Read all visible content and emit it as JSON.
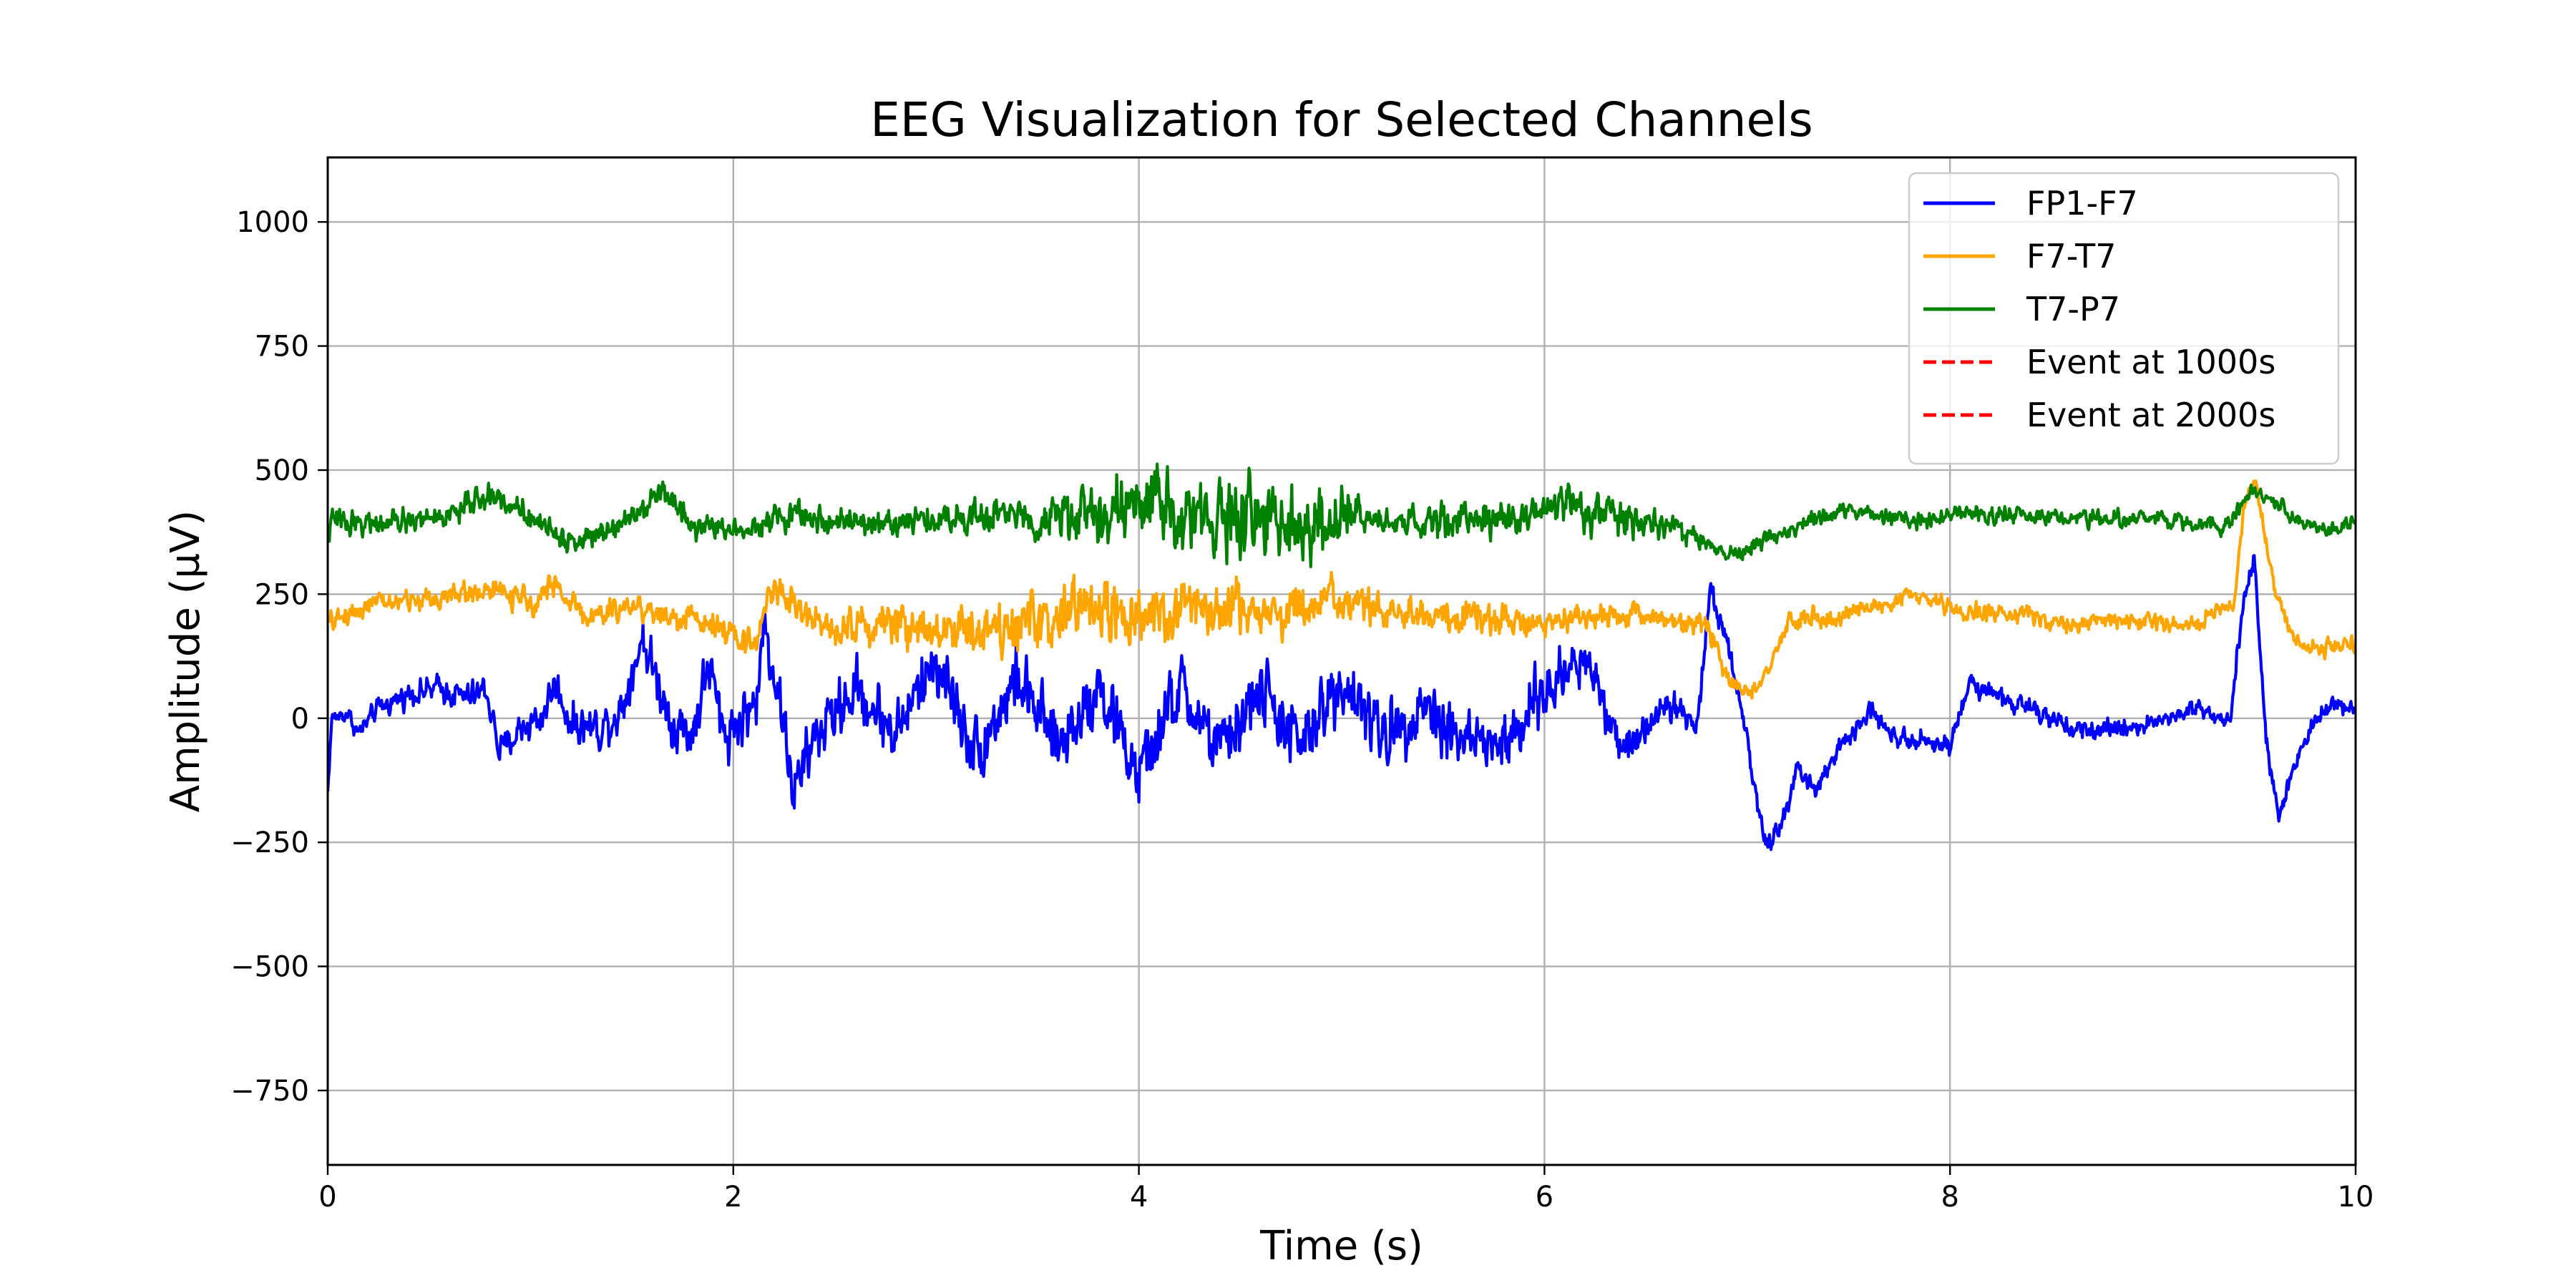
{
  "chart_data": {
    "type": "line",
    "title": "EEG Visualization for Selected Channels",
    "xlabel": "Time (s)",
    "ylabel": "Amplitude (µV)",
    "xlim": [
      0,
      10
    ],
    "ylim": [
      -900,
      1130
    ],
    "xticks": [
      0,
      2,
      4,
      6,
      8,
      10
    ],
    "xtick_labels": [
      "0",
      "2",
      "4",
      "6",
      "8",
      "10"
    ],
    "yticks": [
      -750,
      -500,
      -250,
      0,
      250,
      500,
      750,
      1000
    ],
    "ytick_labels": [
      "−750",
      "−500",
      "−250",
      "0",
      "250",
      "500",
      "750",
      "1000"
    ],
    "grid": true,
    "legend_position": "top-right",
    "series": [
      {
        "name": "FP1-F7",
        "color": "#0000ff",
        "anchors": [
          [
            0,
            -150
          ],
          [
            0.02,
            0
          ],
          [
            0.1,
            10
          ],
          [
            0.15,
            -30
          ],
          [
            0.25,
            20
          ],
          [
            0.4,
            50
          ],
          [
            0.55,
            60
          ],
          [
            0.7,
            40
          ],
          [
            0.78,
            60
          ],
          [
            0.85,
            -70
          ],
          [
            0.95,
            -20
          ],
          [
            1.05,
            0
          ],
          [
            1.12,
            70
          ],
          [
            1.2,
            -10
          ],
          [
            1.35,
            -20
          ],
          [
            1.45,
            20
          ],
          [
            1.55,
            165
          ],
          [
            1.62,
            80
          ],
          [
            1.7,
            -10
          ],
          [
            1.8,
            -30
          ],
          [
            1.88,
            110
          ],
          [
            1.95,
            -30
          ],
          [
            2.05,
            0
          ],
          [
            2.12,
            40
          ],
          [
            2.15,
            190
          ],
          [
            2.22,
            60
          ],
          [
            2.3,
            -150
          ],
          [
            2.4,
            -40
          ],
          [
            2.6,
            60
          ],
          [
            2.8,
            -30
          ],
          [
            3.0,
            120
          ],
          [
            3.2,
            -70
          ],
          [
            3.4,
            80
          ],
          [
            3.6,
            -60
          ],
          [
            3.8,
            70
          ],
          [
            4.0,
            -120
          ],
          [
            4.2,
            60
          ],
          [
            4.4,
            -70
          ],
          [
            4.6,
            60
          ],
          [
            4.8,
            -60
          ],
          [
            5.0,
            80
          ],
          [
            5.2,
            -40
          ],
          [
            5.4,
            30
          ],
          [
            5.6,
            -40
          ],
          [
            5.8,
            -60
          ],
          [
            6.0,
            50
          ],
          [
            6.2,
            130
          ],
          [
            6.4,
            -70
          ],
          [
            6.6,
            40
          ],
          [
            6.75,
            -20
          ],
          [
            6.82,
            260
          ],
          [
            6.9,
            160
          ],
          [
            6.96,
            50
          ],
          [
            7.05,
            -170
          ],
          [
            7.1,
            -270
          ],
          [
            7.18,
            -200
          ],
          [
            7.25,
            -100
          ],
          [
            7.35,
            -150
          ],
          [
            7.45,
            -60
          ],
          [
            7.6,
            20
          ],
          [
            7.7,
            -30
          ],
          [
            7.85,
            -40
          ],
          [
            8.0,
            -60
          ],
          [
            8.1,
            80
          ],
          [
            8.25,
            40
          ],
          [
            8.4,
            20
          ],
          [
            8.6,
            -30
          ],
          [
            8.8,
            -20
          ],
          [
            9.0,
            -10
          ],
          [
            9.2,
            20
          ],
          [
            9.38,
            0
          ],
          [
            9.45,
            250
          ],
          [
            9.5,
            320
          ],
          [
            9.56,
            -50
          ],
          [
            9.62,
            -200
          ],
          [
            9.7,
            -100
          ],
          [
            9.8,
            0
          ],
          [
            9.9,
            30
          ],
          [
            10.0,
            20
          ]
        ],
        "noise": [
          [
            0,
            12
          ],
          [
            2.05,
            45
          ],
          [
            4.0,
            55
          ],
          [
            6.0,
            50
          ],
          [
            6.8,
            18
          ],
          [
            9.9,
            14
          ],
          [
            10.0,
            14
          ]
        ]
      },
      {
        "name": "F7-T7",
        "color": "#ffa500",
        "anchors": [
          [
            0,
            190
          ],
          [
            0.2,
            230
          ],
          [
            0.5,
            240
          ],
          [
            0.8,
            260
          ],
          [
            1.0,
            230
          ],
          [
            1.1,
            270
          ],
          [
            1.3,
            200
          ],
          [
            1.5,
            230
          ],
          [
            1.7,
            200
          ],
          [
            1.9,
            200
          ],
          [
            2.0,
            160
          ],
          [
            2.1,
            150
          ],
          [
            2.2,
            270
          ],
          [
            2.4,
            190
          ],
          [
            2.8,
            190
          ],
          [
            3.2,
            180
          ],
          [
            3.6,
            200
          ],
          [
            3.8,
            230
          ],
          [
            4.0,
            190
          ],
          [
            4.3,
            230
          ],
          [
            4.6,
            210
          ],
          [
            4.9,
            230
          ],
          [
            5.2,
            220
          ],
          [
            5.4,
            200
          ],
          [
            5.7,
            200
          ],
          [
            6.0,
            190
          ],
          [
            6.3,
            210
          ],
          [
            6.6,
            200
          ],
          [
            6.8,
            190
          ],
          [
            6.9,
            90
          ],
          [
            6.98,
            50
          ],
          [
            7.05,
            60
          ],
          [
            7.2,
            190
          ],
          [
            7.5,
            210
          ],
          [
            7.8,
            250
          ],
          [
            8.0,
            220
          ],
          [
            8.3,
            210
          ],
          [
            8.6,
            190
          ],
          [
            8.9,
            200
          ],
          [
            9.2,
            190
          ],
          [
            9.4,
            230
          ],
          [
            9.45,
            420
          ],
          [
            9.5,
            490
          ],
          [
            9.6,
            260
          ],
          [
            9.7,
            150
          ],
          [
            9.8,
            140
          ],
          [
            10.0,
            150
          ]
        ],
        "noise": [
          [
            0,
            16
          ],
          [
            2.2,
            22
          ],
          [
            3.6,
            50
          ],
          [
            5.2,
            30
          ],
          [
            6.8,
            16
          ],
          [
            10.0,
            12
          ]
        ]
      },
      {
        "name": "T7-P7",
        "color": "#008000",
        "anchors": [
          [
            0,
            360
          ],
          [
            0.02,
            400
          ],
          [
            0.3,
            390
          ],
          [
            0.6,
            410
          ],
          [
            0.8,
            450
          ],
          [
            1.0,
            410
          ],
          [
            1.2,
            350
          ],
          [
            1.5,
            410
          ],
          [
            1.65,
            460
          ],
          [
            1.8,
            390
          ],
          [
            2.0,
            380
          ],
          [
            2.3,
            410
          ],
          [
            2.6,
            390
          ],
          [
            3.0,
            400
          ],
          [
            3.3,
            410
          ],
          [
            3.6,
            400
          ],
          [
            3.9,
            420
          ],
          [
            4.2,
            420
          ],
          [
            4.5,
            400
          ],
          [
            4.8,
            380
          ],
          [
            5.1,
            400
          ],
          [
            5.4,
            390
          ],
          [
            5.8,
            400
          ],
          [
            6.1,
            430
          ],
          [
            6.3,
            410
          ],
          [
            6.6,
            390
          ],
          [
            6.9,
            330
          ],
          [
            7.0,
            340
          ],
          [
            7.2,
            380
          ],
          [
            7.5,
            420
          ],
          [
            7.8,
            400
          ],
          [
            8.1,
            410
          ],
          [
            8.4,
            410
          ],
          [
            8.8,
            400
          ],
          [
            9.1,
            400
          ],
          [
            9.35,
            380
          ],
          [
            9.5,
            460
          ],
          [
            9.7,
            400
          ],
          [
            9.85,
            380
          ],
          [
            10.0,
            400
          ]
        ],
        "noise": [
          [
            0,
            18
          ],
          [
            3.4,
            22
          ],
          [
            3.8,
            60
          ],
          [
            4.9,
            55
          ],
          [
            5.2,
            22
          ],
          [
            6.0,
            30
          ],
          [
            6.4,
            30
          ],
          [
            6.8,
            14
          ],
          [
            10.0,
            12
          ]
        ]
      }
    ],
    "legend_extra": [
      {
        "name": "Event at 1000s",
        "color": "#ff0000",
        "style": "dashed"
      },
      {
        "name": "Event at 2000s",
        "color": "#ff0000",
        "style": "dashed"
      }
    ]
  }
}
